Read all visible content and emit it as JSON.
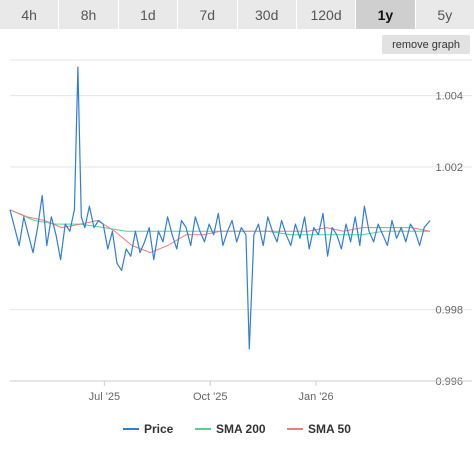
{
  "range_tabs": [
    {
      "label": "4h",
      "active": false
    },
    {
      "label": "8h",
      "active": false
    },
    {
      "label": "1d",
      "active": false
    },
    {
      "label": "7d",
      "active": false
    },
    {
      "label": "30d",
      "active": false
    },
    {
      "label": "120d",
      "active": false
    },
    {
      "label": "1y",
      "active": true
    },
    {
      "label": "5y",
      "active": false
    }
  ],
  "remove_graph_label": "remove graph",
  "colors": {
    "price": "#2f7ed8",
    "sma200": "#4fd68c",
    "sma50": "#f07c7c",
    "grid": "#e6e6e6",
    "tab_background": "#e9e9e9",
    "tab_active_background": "#cfcfcf"
  },
  "chart_data": {
    "type": "line",
    "x_type": "date",
    "xlim": [
      "2025-04-10",
      "2026-04-10"
    ],
    "ylim": [
      0.996,
      1.005
    ],
    "yticks": [
      {
        "value": 0.996,
        "label": "0.996"
      },
      {
        "value": 0.998,
        "label": "0.998"
      },
      {
        "value": 1.002,
        "label": "1.002"
      },
      {
        "value": 1.004,
        "label": "1.004"
      }
    ],
    "xticks": [
      {
        "value": "2025-07-01",
        "label": "Jul '25"
      },
      {
        "value": "2025-10-01",
        "label": "Oct '25"
      },
      {
        "value": "2026-01-01",
        "label": "Jan '26"
      }
    ],
    "grid": true,
    "legend_position": "bottom",
    "series": [
      {
        "name": "Price",
        "x": [
          "2025-04-10",
          "2025-04-14",
          "2025-04-18",
          "2025-04-22",
          "2025-04-26",
          "2025-04-30",
          "2025-05-04",
          "2025-05-08",
          "2025-05-12",
          "2025-05-16",
          "2025-05-20",
          "2025-05-24",
          "2025-05-28",
          "2025-06-01",
          "2025-06-05",
          "2025-06-08",
          "2025-06-11",
          "2025-06-14",
          "2025-06-18",
          "2025-06-22",
          "2025-06-26",
          "2025-06-30",
          "2025-07-04",
          "2025-07-08",
          "2025-07-12",
          "2025-07-16",
          "2025-07-20",
          "2025-07-24",
          "2025-07-28",
          "2025-08-01",
          "2025-08-05",
          "2025-08-09",
          "2025-08-13",
          "2025-08-17",
          "2025-08-21",
          "2025-08-25",
          "2025-08-29",
          "2025-09-02",
          "2025-09-06",
          "2025-09-10",
          "2025-09-14",
          "2025-09-18",
          "2025-09-22",
          "2025-09-26",
          "2025-09-30",
          "2025-10-04",
          "2025-10-08",
          "2025-10-12",
          "2025-10-16",
          "2025-10-20",
          "2025-10-24",
          "2025-10-28",
          "2025-11-01",
          "2025-11-04",
          "2025-11-08",
          "2025-11-12",
          "2025-11-16",
          "2025-11-20",
          "2025-11-24",
          "2025-11-28",
          "2025-12-02",
          "2025-12-06",
          "2025-12-10",
          "2025-12-14",
          "2025-12-18",
          "2025-12-22",
          "2025-12-26",
          "2025-12-30",
          "2026-01-03",
          "2026-01-07",
          "2026-01-11",
          "2026-01-15",
          "2026-01-19",
          "2026-01-23",
          "2026-01-27",
          "2026-01-31",
          "2026-02-04",
          "2026-02-08",
          "2026-02-12",
          "2026-02-16",
          "2026-02-20",
          "2026-02-24",
          "2026-02-28",
          "2026-03-04",
          "2026-03-08",
          "2026-03-12",
          "2026-03-16",
          "2026-03-20",
          "2026-03-24",
          "2026-03-28",
          "2026-04-01",
          "2026-04-05",
          "2026-04-10"
        ],
        "y": [
          1.0008,
          1.0003,
          0.9998,
          1.0006,
          1.0001,
          0.9996,
          1.0003,
          1.0012,
          0.9998,
          1.0006,
          1.0001,
          0.9994,
          1.0004,
          1.0002,
          1.0008,
          1.0048,
          1.0006,
          1.0003,
          1.0009,
          1.0003,
          1.0005,
          1.0004,
          0.9997,
          1.0002,
          0.9993,
          0.9991,
          0.9997,
          0.9995,
          1.0002,
          0.9996,
          0.9999,
          1.0003,
          0.9994,
          1.0002,
          0.9999,
          1.0006,
          1.0001,
          0.9997,
          1.0005,
          1.0003,
          0.9998,
          1.0006,
          1.0002,
          0.9999,
          1.0004,
          1.0001,
          1.0007,
          0.9998,
          1.0002,
          1.0005,
          0.9999,
          1.0003,
          1.0001,
          0.9969,
          1.0001,
          1.0004,
          0.9998,
          1.0006,
          1.0002,
          0.9999,
          1.0005,
          1.0001,
          0.9998,
          1.0004,
          1.0,
          1.0006,
          0.9997,
          1.0003,
          1.0001,
          1.0007,
          0.9995,
          1.0003,
          1.0001,
          0.9997,
          1.0004,
          0.9999,
          1.0006,
          0.9998,
          1.0009,
          1.0002,
          0.9999,
          1.0004,
          1.0001,
          0.9998,
          1.0005,
          1.0,
          1.0003,
          0.9999,
          1.0004,
          1.0002,
          0.9998,
          1.0003,
          1.0005
        ]
      },
      {
        "name": "SMA 200",
        "x": [
          "2025-04-10",
          "2025-05-01",
          "2025-05-20",
          "2025-06-10",
          "2025-07-01",
          "2025-07-20",
          "2025-08-10",
          "2025-09-01",
          "2025-09-20",
          "2025-10-10",
          "2025-11-01",
          "2025-11-20",
          "2025-12-10",
          "2026-01-01",
          "2026-01-20",
          "2026-02-10",
          "2026-03-01",
          "2026-03-20",
          "2026-04-10"
        ],
        "y": [
          1.0008,
          1.0005,
          1.0004,
          1.0004,
          1.0003,
          1.0002,
          1.0002,
          1.0002,
          1.0002,
          1.0002,
          1.0002,
          1.0002,
          1.0001,
          1.0001,
          1.0001,
          1.0001,
          1.0002,
          1.0002,
          1.0002
        ]
      },
      {
        "name": "SMA 50",
        "x": [
          "2025-04-10",
          "2025-04-25",
          "2025-05-10",
          "2025-05-25",
          "2025-06-10",
          "2025-06-25",
          "2025-07-10",
          "2025-07-25",
          "2025-08-10",
          "2025-08-25",
          "2025-09-10",
          "2025-09-25",
          "2025-10-10",
          "2025-10-25",
          "2025-11-10",
          "2025-11-25",
          "2025-12-10",
          "2025-12-25",
          "2026-01-10",
          "2026-01-25",
          "2026-02-10",
          "2026-02-25",
          "2026-03-10",
          "2026-03-25",
          "2026-04-10"
        ],
        "y": [
          1.0008,
          1.0006,
          1.0005,
          1.0003,
          1.0004,
          1.0005,
          1.0002,
          0.9998,
          0.9996,
          0.9998,
          1.0001,
          1.0001,
          1.0002,
          1.0002,
          1.0002,
          1.0002,
          1.0002,
          1.0002,
          1.0003,
          1.0002,
          1.0003,
          1.0003,
          1.0003,
          1.0003,
          1.0002
        ]
      }
    ]
  }
}
